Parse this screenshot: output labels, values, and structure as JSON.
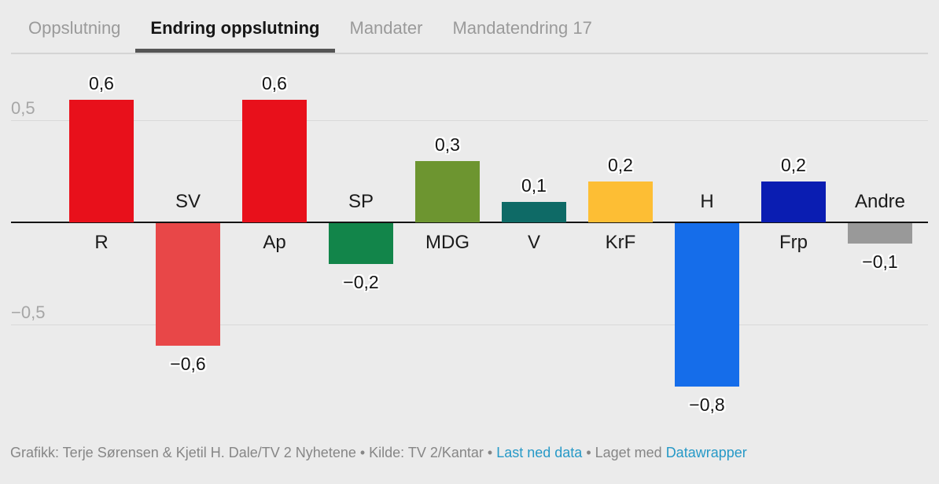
{
  "tabs": [
    {
      "label": "Oppslutning",
      "active": false
    },
    {
      "label": "Endring oppslutning",
      "active": true
    },
    {
      "label": "Mandater",
      "active": false
    },
    {
      "label": "Mandatendring 17",
      "active": false
    }
  ],
  "chart_data": {
    "type": "bar",
    "title": "",
    "categories": [
      "R",
      "SV",
      "Ap",
      "SP",
      "MDG",
      "V",
      "KrF",
      "H",
      "Frp",
      "Andre"
    ],
    "values": [
      0.6,
      -0.6,
      0.6,
      -0.2,
      0.3,
      0.1,
      0.2,
      -0.8,
      0.2,
      -0.1
    ],
    "display_values": [
      "0,6",
      "−0,6",
      "0,6",
      "−0,2",
      "0,3",
      "0,1",
      "0,2",
      "−0,8",
      "0,2",
      "−0,1"
    ],
    "bar_colors": [
      "#e8101b",
      "#e84748",
      "#e8101b",
      "#12854a",
      "#6d9530",
      "#0e6a66",
      "#fdbe34",
      "#156dea",
      "#0a1db2",
      "#999999"
    ],
    "y_ticks": [
      {
        "label": "0,5",
        "value": 0.5
      },
      {
        "label": "−0,5",
        "value": -0.5
      }
    ],
    "ylim": [
      -0.9,
      0.75
    ],
    "grid": true,
    "legend": "none",
    "xlabel": "",
    "ylabel": ""
  },
  "footer": {
    "parts": [
      {
        "text": "Grafikk: Terje Sørensen & Kjetil H. Dale/TV 2 Nyhetene • Kilde: TV 2/Kantar • ",
        "link": false
      },
      {
        "text": "Last ned data",
        "link": true,
        "name": "download-data-link"
      },
      {
        "text": " • Laget med ",
        "link": false
      },
      {
        "text": "Datawrapper",
        "link": true,
        "name": "datawrapper-link"
      }
    ]
  },
  "colors": {
    "background": "#ebebeb",
    "tab_inactive": "#9a9a9a",
    "tab_active": "#161616",
    "tab_underline": "#555555",
    "axis": "#141414",
    "gridline": "#d9d9d9",
    "tick_text": "#a6a6a6",
    "footer_text": "#868686",
    "link": "#2699c7"
  }
}
